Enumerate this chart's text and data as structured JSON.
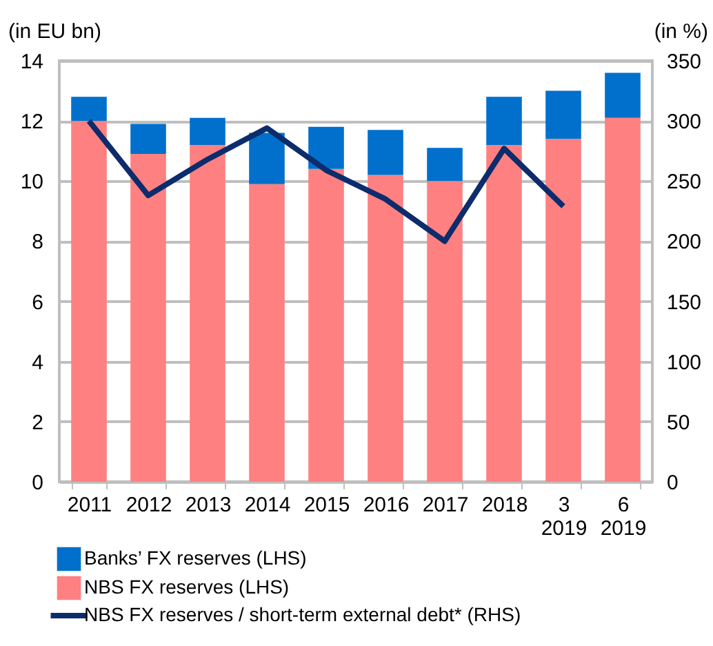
{
  "chart_data": {
    "type": "bar",
    "stacked": true,
    "ylabel": "(in EU bn)",
    "y2label": "(in %)",
    "categories": [
      "2011",
      "2012",
      "2013",
      "2014",
      "2015",
      "2016",
      "2017",
      "2018",
      "3\n2019",
      "6\n2019"
    ],
    "series": [
      {
        "name": "NBS FX reserves (LHS)",
        "color": "#ff8080",
        "values": [
          12.0,
          10.9,
          11.2,
          9.9,
          10.4,
          10.2,
          10.0,
          11.2,
          11.4,
          12.1
        ]
      },
      {
        "name": "Banks’ FX reserves (LHS)",
        "color": "#0070cc",
        "values": [
          0.8,
          1.0,
          0.9,
          1.7,
          1.4,
          1.5,
          1.1,
          1.6,
          1.6,
          1.5
        ]
      },
      {
        "name": "NBS FX reserves / short-term external debt* (RHS)",
        "type": "line",
        "axis": "y2",
        "color": "#0c2c6c",
        "values": [
          300,
          238,
          268,
          294,
          259,
          235,
          200,
          277,
          229,
          null
        ]
      }
    ],
    "ylim": [
      0,
      14
    ],
    "yticks": [
      0,
      2,
      4,
      6,
      8,
      10,
      12,
      14
    ],
    "y2lim": [
      0,
      350
    ],
    "y2ticks": [
      0,
      50,
      100,
      150,
      200,
      250,
      300,
      350
    ],
    "grid": "y",
    "legend": "bottom"
  }
}
